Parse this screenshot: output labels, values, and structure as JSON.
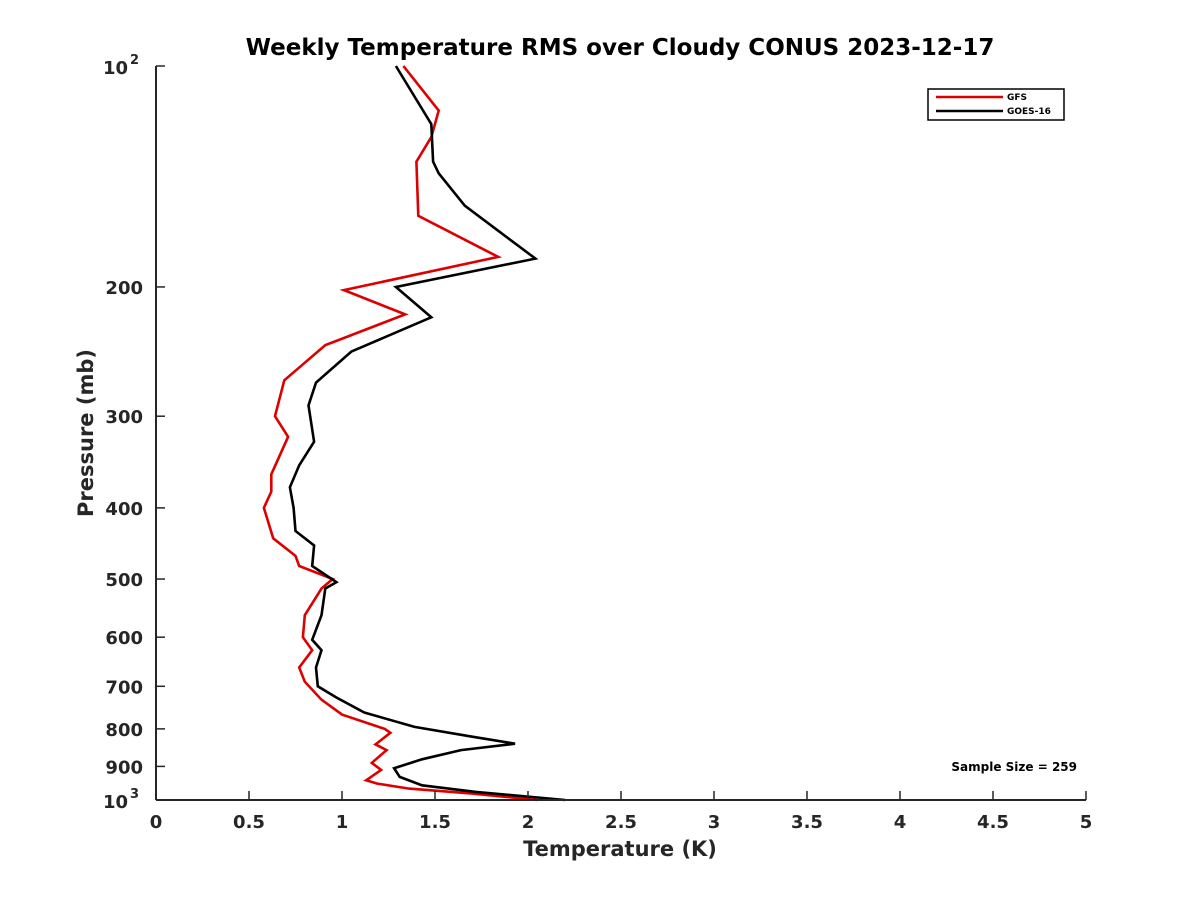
{
  "chart_data": {
    "type": "line",
    "title": "Weekly Temperature RMS over Cloudy CONUS 2023-12-17",
    "xlabel": "Temperature (K)",
    "ylabel": "Pressure (mb)",
    "xlim": [
      0,
      5
    ],
    "ylim": [
      100,
      1000
    ],
    "y_scale": "log",
    "y_reversed": true,
    "grid": false,
    "legend_position": "top-right",
    "x_ticks": [
      {
        "value": 0,
        "label": "0"
      },
      {
        "value": 0.5,
        "label": "0.5"
      },
      {
        "value": 1,
        "label": "1"
      },
      {
        "value": 1.5,
        "label": "1.5"
      },
      {
        "value": 2,
        "label": "2"
      },
      {
        "value": 2.5,
        "label": "2.5"
      },
      {
        "value": 3,
        "label": "3"
      },
      {
        "value": 3.5,
        "label": "3.5"
      },
      {
        "value": 4,
        "label": "4"
      },
      {
        "value": 4.5,
        "label": "4.5"
      },
      {
        "value": 5,
        "label": "5"
      }
    ],
    "y_ticks": [
      {
        "value": 100,
        "label": "10",
        "exp": "2"
      },
      {
        "value": 200,
        "label": "200"
      },
      {
        "value": 300,
        "label": "300"
      },
      {
        "value": 400,
        "label": "400"
      },
      {
        "value": 500,
        "label": "500"
      },
      {
        "value": 600,
        "label": "600"
      },
      {
        "value": 700,
        "label": "700"
      },
      {
        "value": 800,
        "label": "800"
      },
      {
        "value": 900,
        "label": "900"
      },
      {
        "value": 1000,
        "label": "10",
        "exp": "3"
      }
    ],
    "series": [
      {
        "name": "GFS",
        "color": "#dd0000",
        "points": [
          [
            1.33,
            100
          ],
          [
            1.52,
            115
          ],
          [
            1.48,
            125
          ],
          [
            1.4,
            135
          ],
          [
            1.41,
            160
          ],
          [
            1.84,
            182
          ],
          [
            1.01,
            202
          ],
          [
            1.34,
            218
          ],
          [
            0.91,
            240
          ],
          [
            0.69,
            268
          ],
          [
            0.64,
            300
          ],
          [
            0.71,
            320
          ],
          [
            0.62,
            360
          ],
          [
            0.62,
            380
          ],
          [
            0.58,
            400
          ],
          [
            0.63,
            440
          ],
          [
            0.75,
            465
          ],
          [
            0.77,
            480
          ],
          [
            0.95,
            500
          ],
          [
            0.89,
            515
          ],
          [
            0.8,
            560
          ],
          [
            0.79,
            600
          ],
          [
            0.84,
            625
          ],
          [
            0.77,
            660
          ],
          [
            0.8,
            690
          ],
          [
            0.89,
            730
          ],
          [
            1.0,
            765
          ],
          [
            1.23,
            800
          ],
          [
            1.26,
            810
          ],
          [
            1.18,
            840
          ],
          [
            1.24,
            855
          ],
          [
            1.16,
            890
          ],
          [
            1.21,
            910
          ],
          [
            1.13,
            940
          ],
          [
            1.19,
            950
          ],
          [
            1.36,
            965
          ],
          [
            1.7,
            980
          ],
          [
            2.05,
            1000
          ]
        ]
      },
      {
        "name": "GOES-16",
        "color": "#000000",
        "points": [
          [
            1.29,
            100
          ],
          [
            1.48,
            120
          ],
          [
            1.49,
            135
          ],
          [
            1.52,
            140
          ],
          [
            1.66,
            155
          ],
          [
            2.04,
            183
          ],
          [
            1.29,
            200
          ],
          [
            1.48,
            220
          ],
          [
            1.05,
            245
          ],
          [
            0.86,
            270
          ],
          [
            0.82,
            290
          ],
          [
            0.85,
            325
          ],
          [
            0.77,
            350
          ],
          [
            0.72,
            375
          ],
          [
            0.74,
            400
          ],
          [
            0.75,
            430
          ],
          [
            0.85,
            450
          ],
          [
            0.84,
            480
          ],
          [
            0.97,
            505
          ],
          [
            0.91,
            515
          ],
          [
            0.89,
            560
          ],
          [
            0.84,
            605
          ],
          [
            0.89,
            625
          ],
          [
            0.86,
            660
          ],
          [
            0.87,
            700
          ],
          [
            0.97,
            725
          ],
          [
            1.12,
            760
          ],
          [
            1.39,
            795
          ],
          [
            1.7,
            820
          ],
          [
            1.93,
            838
          ],
          [
            1.64,
            855
          ],
          [
            1.43,
            880
          ],
          [
            1.28,
            905
          ],
          [
            1.31,
            930
          ],
          [
            1.43,
            955
          ],
          [
            1.72,
            975
          ],
          [
            2.2,
            1000
          ]
        ]
      }
    ],
    "annotations": [
      {
        "text": "Sample Size = 259",
        "position": "bottom-right"
      }
    ]
  }
}
